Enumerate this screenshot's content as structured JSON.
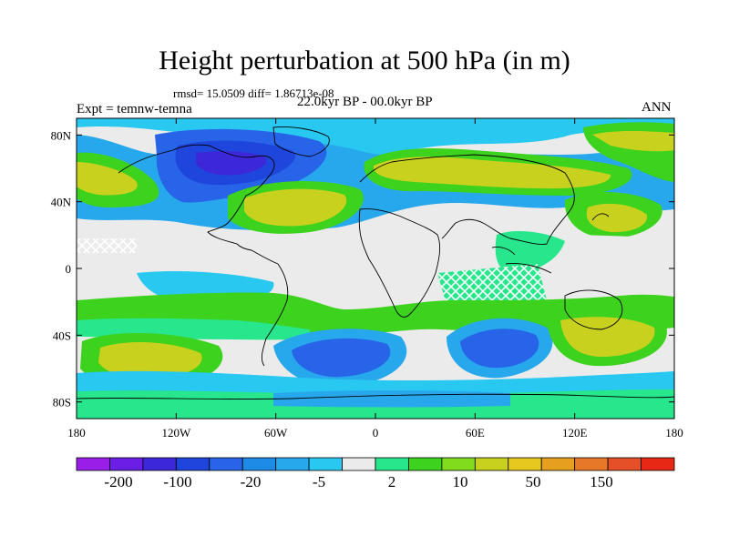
{
  "title": "Height perturbation at 500 hPa (in m)",
  "stats_text": "rmsd= 15.0509 diff= 1.86713e-08",
  "experiment_text": "Expt = temnw-temna",
  "period_text": "22.0kyr BP - 00.0kyr BP",
  "season_text": "ANN",
  "lon_ticks": [
    "180",
    "120W",
    "60W",
    "0",
    "60E",
    "120E",
    "180"
  ],
  "lat_ticks": [
    "80N",
    "40N",
    "0",
    "40S",
    "80S"
  ],
  "colorbar": {
    "colors": [
      "#9a1ee8",
      "#6a1ee6",
      "#3c28d8",
      "#1e46dc",
      "#2864e8",
      "#1e8ce6",
      "#28a8ec",
      "#28c8f0",
      "#ebebeb",
      "#28e68c",
      "#3cd21e",
      "#82dc1e",
      "#c8d21e",
      "#e6c81e",
      "#e6a01e",
      "#e67828",
      "#e65028",
      "#e62814"
    ],
    "labels": [
      "-200",
      "-100",
      "-20",
      "-5",
      "2",
      "10",
      "50",
      "150"
    ]
  }
}
